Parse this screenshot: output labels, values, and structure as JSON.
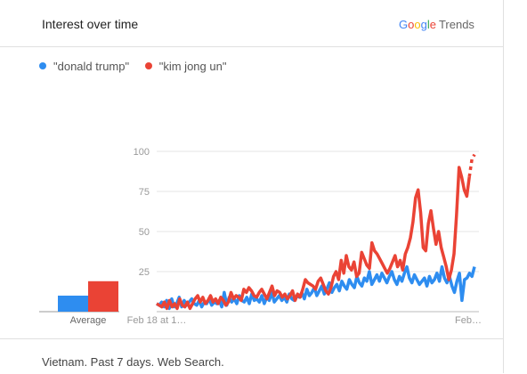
{
  "header": {
    "title": "Interest over time",
    "brand_google": "Google",
    "brand_trends": "Trends"
  },
  "colors": {
    "donald_trump": "#2e8df0",
    "kim_jong_un": "#ea4335"
  },
  "chart_data": {
    "type": "line",
    "title": "Interest over time",
    "y_ticks": [
      "100",
      "75",
      "50",
      "25"
    ],
    "ylim": [
      0,
      100
    ],
    "x_tick_labels": [
      "Feb 18 at 1…",
      "Feb…"
    ],
    "average_label": "Average",
    "averages": [
      {
        "name": "\"donald trump\"",
        "value": 10
      },
      {
        "name": "\"kim jong un\"",
        "value": 19
      }
    ],
    "series": [
      {
        "name": "\"donald trump\"",
        "values": [
          5,
          4,
          6,
          3,
          7,
          2,
          8,
          3,
          5,
          9,
          3,
          7,
          4,
          6,
          8,
          5,
          4,
          7,
          3,
          6,
          5,
          8,
          4,
          6,
          5,
          7,
          3,
          12,
          4,
          9,
          6,
          8,
          5,
          10,
          7,
          6,
          9,
          5,
          11,
          7,
          8,
          6,
          10,
          5,
          9,
          7,
          12,
          6,
          8,
          10,
          7,
          9,
          6,
          11,
          8,
          7,
          10,
          9,
          12,
          8,
          14,
          10,
          12,
          15,
          10,
          13,
          16,
          11,
          14,
          18,
          12,
          15,
          17,
          13,
          19,
          16,
          14,
          20,
          17,
          15,
          22,
          18,
          16,
          21,
          19,
          25,
          17,
          20,
          23,
          19,
          24,
          21,
          18,
          22,
          25,
          20,
          17,
          22,
          19,
          24,
          28,
          21,
          18,
          23,
          20,
          17,
          19,
          21,
          16,
          22,
          18,
          20,
          24,
          19,
          28,
          21,
          18,
          22,
          16,
          12,
          19,
          24,
          7,
          20,
          21,
          24,
          22,
          28
        ]
      },
      {
        "name": "\"kim jong un\"",
        "values": [
          5,
          4,
          3,
          6,
          2,
          7,
          3,
          5,
          2,
          8,
          4,
          3,
          6,
          2,
          5,
          8,
          10,
          6,
          9,
          5,
          7,
          10,
          6,
          8,
          5,
          9,
          7,
          4,
          6,
          12,
          8,
          10,
          9,
          7,
          14,
          12,
          15,
          13,
          10,
          9,
          12,
          14,
          11,
          8,
          12,
          16,
          10,
          13,
          12,
          9,
          11,
          8,
          10,
          13,
          7,
          11,
          9,
          14,
          20,
          18,
          17,
          16,
          14,
          19,
          21,
          17,
          13,
          11,
          15,
          22,
          25,
          20,
          32,
          24,
          35,
          28,
          26,
          31,
          22,
          24,
          37,
          33,
          29,
          27,
          43,
          38,
          36,
          33,
          30,
          27,
          24,
          27,
          31,
          35,
          28,
          32,
          26,
          36,
          40,
          46,
          56,
          71,
          76,
          62,
          40,
          38,
          55,
          63,
          52,
          42,
          50,
          40,
          34,
          28,
          20,
          26,
          36,
          60,
          90,
          84,
          76,
          72,
          84,
          95,
          98
        ]
      }
    ]
  },
  "footer": {
    "text": "Vietnam. Past 7 days. Web Search."
  }
}
